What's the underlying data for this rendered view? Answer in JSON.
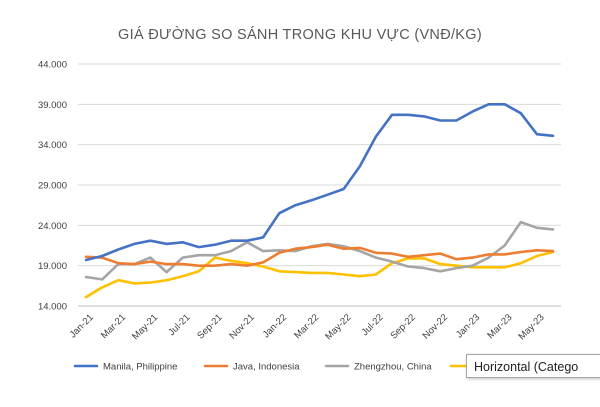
{
  "colors": {
    "manila": "#4472C4",
    "java": "#ED7D31",
    "zhengzhou": "#A5A5A5",
    "horizontal": "#FFC000",
    "grid": "#D9D9D9"
  },
  "tooltip": "Horizontal (Catego",
  "chart_data": {
    "type": "line",
    "title": "GIÁ ĐƯỜNG SO SÁNH TRONG KHU VỰC (VNĐ/KG)",
    "ylim": [
      14000,
      44000
    ],
    "y_ticks": [
      "14.000",
      "19.000",
      "24.000",
      "29.000",
      "34.000",
      "39.000",
      "44.000"
    ],
    "y_tick_values": [
      14000,
      19000,
      24000,
      29000,
      34000,
      39000,
      44000
    ],
    "x_labels": [
      "Jan-21",
      "Mar-21",
      "May-21",
      "Jul-21",
      "Sep-21",
      "Nov-21",
      "Jan-22",
      "Mar-22",
      "May-22",
      "Jul-22",
      "Sep-22",
      "Nov-22",
      "Jan-23",
      "Mar-23",
      "May-23"
    ],
    "x": [
      "Jan-21",
      "Feb-21",
      "Mar-21",
      "Apr-21",
      "May-21",
      "Jun-21",
      "Jul-21",
      "Aug-21",
      "Sep-21",
      "Oct-21",
      "Nov-21",
      "Dec-21",
      "Jan-22",
      "Feb-22",
      "Mar-22",
      "Apr-22",
      "May-22",
      "Jun-22",
      "Jul-22",
      "Aug-22",
      "Sep-22",
      "Oct-22",
      "Nov-22",
      "Dec-22",
      "Jan-23",
      "Feb-23",
      "Mar-23",
      "Apr-23",
      "May-23",
      "Jun-23"
    ],
    "legend_position": "bottom",
    "grid": true,
    "series": [
      {
        "name": "Manila, Philippine",
        "color_key": "manila",
        "values": [
          19700,
          20200,
          21000,
          21700,
          22100,
          21700,
          21900,
          21300,
          21600,
          22100,
          22100,
          22500,
          25500,
          26500,
          27100,
          27800,
          28500,
          31300,
          35000,
          37700,
          37700,
          37500,
          37000,
          37000,
          38100,
          39000,
          39000,
          37900,
          35300,
          35100
        ]
      },
      {
        "name": "Java, Indonesia",
        "color_key": "java",
        "values": [
          20100,
          20000,
          19300,
          19200,
          19500,
          19200,
          19200,
          19000,
          19000,
          19200,
          19000,
          19400,
          20600,
          21100,
          21300,
          21600,
          21100,
          21200,
          20600,
          20500,
          20100,
          20300,
          20500,
          19800,
          20000,
          20400,
          20400,
          20700,
          20900,
          20800
        ]
      },
      {
        "name": "Zhengzhou, China",
        "color_key": "zhengzhou",
        "values": [
          17600,
          17300,
          19200,
          19200,
          20000,
          18200,
          20000,
          20300,
          20300,
          20800,
          21900,
          20800,
          20900,
          20800,
          21400,
          21700,
          21400,
          20800,
          20000,
          19500,
          18900,
          18700,
          18300,
          18700,
          19000,
          20000,
          21500,
          24400,
          23700,
          23500
        ]
      },
      {
        "name": "Horizontal (Category) Axis",
        "color_key": "horizontal",
        "values": [
          15100,
          16300,
          17200,
          16800,
          16900,
          17200,
          17700,
          18300,
          20000,
          19600,
          19300,
          18900,
          18300,
          18200,
          18100,
          18100,
          17900,
          17700,
          17900,
          19300,
          19900,
          19900,
          19200,
          19000,
          18800,
          18800,
          18800,
          19300,
          20200,
          20700
        ]
      }
    ]
  }
}
